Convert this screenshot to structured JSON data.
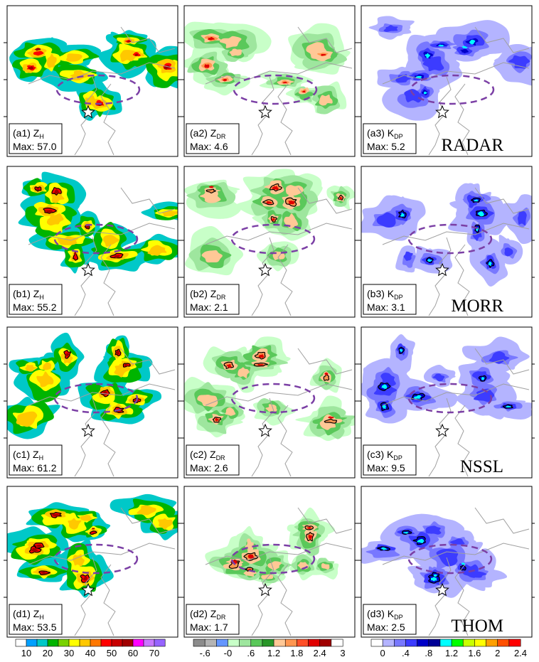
{
  "chart_data": {
    "type": "heatmap",
    "rows": [
      {
        "scheme": "RADAR",
        "panels": [
          {
            "id": "a1",
            "var": "Z",
            "sub": "H",
            "max_label": "Max:",
            "max": "57.0"
          },
          {
            "id": "a2",
            "var": "Z",
            "sub": "DR",
            "max_label": "Max:",
            "max": "4.6"
          },
          {
            "id": "a3",
            "var": "K",
            "sub": "DP",
            "max_label": "Max:",
            "max": "5.2"
          }
        ]
      },
      {
        "scheme": "MORR",
        "panels": [
          {
            "id": "b1",
            "var": "Z",
            "sub": "H",
            "max_label": "Max:",
            "max": "55.2"
          },
          {
            "id": "b2",
            "var": "Z",
            "sub": "DR",
            "max_label": "Max:",
            "max": "2.1"
          },
          {
            "id": "b3",
            "var": "K",
            "sub": "DP",
            "max_label": "Max:",
            "max": "3.1"
          }
        ]
      },
      {
        "scheme": "NSSL",
        "panels": [
          {
            "id": "c1",
            "var": "Z",
            "sub": "H",
            "max_label": "Max:",
            "max": "61.2"
          },
          {
            "id": "c2",
            "var": "Z",
            "sub": "DR",
            "max_label": "Max:",
            "max": "2.6"
          },
          {
            "id": "c3",
            "var": "K",
            "sub": "DP",
            "max_label": "Max:",
            "max": "9.5"
          }
        ]
      },
      {
        "scheme": "THOM",
        "panels": [
          {
            "id": "d1",
            "var": "Z",
            "sub": "H",
            "max_label": "Max:",
            "max": "53.5"
          },
          {
            "id": "d2",
            "var": "Z",
            "sub": "DR",
            "max_label": "Max:",
            "max": "1.7"
          },
          {
            "id": "d3",
            "var": "K",
            "sub": "DP",
            "max_label": "Max:",
            "max": "2.5"
          }
        ]
      }
    ],
    "colorbars": [
      {
        "name": "ZH",
        "colors": [
          "#ffffff",
          "#00a0ff",
          "#00c8c8",
          "#00b400",
          "#78d200",
          "#ffff00",
          "#ffc800",
          "#ff7800",
          "#ff0000",
          "#c80000",
          "#a00000",
          "#ff00ff",
          "#c878ff",
          "#9664ff"
        ],
        "ticks": [
          "10",
          "20",
          "30",
          "40",
          "50",
          "60",
          "70"
        ]
      },
      {
        "name": "ZDR",
        "colors": [
          "#8c8c8c",
          "#b4b4b4",
          "#6496ff",
          "#c8ffc8",
          "#9ee69e",
          "#5ac85a",
          "#289628",
          "#ffc896",
          "#ff9650",
          "#ff5028",
          "#e10000",
          "#a00000",
          "#ffffff"
        ],
        "ticks": [
          "-.6",
          "-0",
          ".6",
          "1.2",
          "1.8",
          "2.4",
          "3"
        ]
      },
      {
        "name": "KDP",
        "colors": [
          "#ffffff",
          "#b4b4ff",
          "#7878ff",
          "#3c3cff",
          "#0000c8",
          "#000096",
          "#00ffff",
          "#00ff00",
          "#c8ff00",
          "#ffff00",
          "#ffa000",
          "#ff5000",
          "#ff0000"
        ],
        "ticks": [
          "0",
          ".4",
          ".8",
          "1.2",
          "1.6",
          "2",
          "2.4"
        ]
      }
    ]
  }
}
